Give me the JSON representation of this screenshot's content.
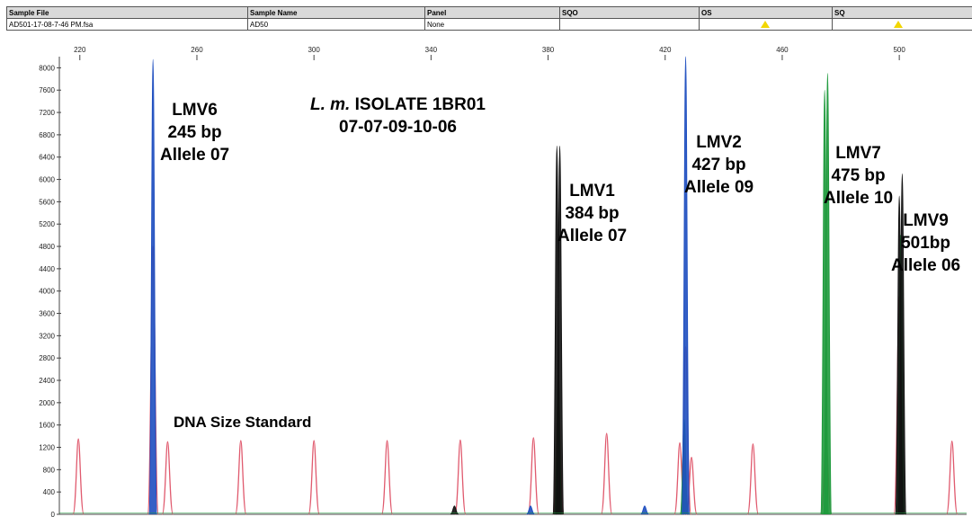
{
  "header": {
    "columns": [
      "Sample File",
      "Sample Name",
      "Panel",
      "SQO",
      "OS",
      "SQ"
    ],
    "values": [
      "AD501-17-08-7-46 PM.fsa",
      "AD50",
      "None",
      "",
      "",
      ""
    ],
    "warning_icons": [
      "OS",
      "SQ"
    ],
    "warning_color": "#f2d600"
  },
  "title": {
    "species": "L. m.",
    "isolate": "ISOLATE 1BR01",
    "profile": "07-07-09-10-06"
  },
  "annotations": [
    {
      "locus": "LMV6",
      "size": "245  bp",
      "allele": "Allele 07"
    },
    {
      "locus": "LMV1",
      "size": "384  bp",
      "allele": "Allele 07"
    },
    {
      "locus": "LMV2",
      "size": "427  bp",
      "allele": "Allele 09"
    },
    {
      "locus": "LMV7",
      "size": "475  bp",
      "allele": "Allele 10"
    },
    {
      "locus": "LMV9",
      "size": "501bp",
      "allele": "Allele 06"
    }
  ],
  "size_standard_label": "DNA Size Standard",
  "chart_data": {
    "type": "line",
    "title": "",
    "xlabel": "",
    "ylabel": "",
    "x_ticks": [
      220,
      260,
      300,
      340,
      380,
      420,
      460,
      500
    ],
    "y_ticks": [
      0,
      400,
      800,
      1200,
      1600,
      2000,
      2400,
      2800,
      3200,
      3600,
      4000,
      4400,
      4800,
      5200,
      5600,
      6000,
      6400,
      6800,
      7200,
      7600,
      8000
    ],
    "xlim": [
      213,
      523
    ],
    "ylim": [
      0,
      8200
    ],
    "grid": false,
    "series": [
      {
        "dye": "blue",
        "color": "#1f4fc0",
        "peaks": [
          {
            "x": 245,
            "height": 8150
          },
          {
            "x": 374,
            "height": 150
          },
          {
            "x": 413,
            "height": 150
          },
          {
            "x": 427,
            "height": 8200
          }
        ]
      },
      {
        "dye": "green",
        "color": "#1e9a3c",
        "peaks": [
          {
            "x": 383.5,
            "height": 2500
          },
          {
            "x": 426.5,
            "height": 1700
          },
          {
            "x": 474.5,
            "height": 7600
          },
          {
            "x": 475.5,
            "height": 7900
          },
          {
            "x": 500.5,
            "height": 5000
          }
        ]
      },
      {
        "dye": "black",
        "color": "#111111",
        "peaks": [
          {
            "x": 383,
            "height": 6600
          },
          {
            "x": 384,
            "height": 6600
          },
          {
            "x": 500,
            "height": 5700
          },
          {
            "x": 501,
            "height": 6100
          },
          {
            "x": 348,
            "height": 150
          }
        ]
      },
      {
        "dye": "red",
        "color": "#e05a6e",
        "label": "DNA Size Standard",
        "peaks": [
          {
            "x": 219.5,
            "height": 1350
          },
          {
            "x": 245,
            "height": 4800
          },
          {
            "x": 250,
            "height": 1300
          },
          {
            "x": 275,
            "height": 1320
          },
          {
            "x": 300,
            "height": 1320
          },
          {
            "x": 325,
            "height": 1320
          },
          {
            "x": 350,
            "height": 1330
          },
          {
            "x": 375,
            "height": 1370
          },
          {
            "x": 383.5,
            "height": 2100
          },
          {
            "x": 400,
            "height": 1450
          },
          {
            "x": 425,
            "height": 1280
          },
          {
            "x": 427,
            "height": 3000
          },
          {
            "x": 429,
            "height": 1020
          },
          {
            "x": 450,
            "height": 1260
          },
          {
            "x": 475,
            "height": 1350
          },
          {
            "x": 500,
            "height": 3900
          },
          {
            "x": 518,
            "height": 1310
          }
        ]
      }
    ]
  }
}
